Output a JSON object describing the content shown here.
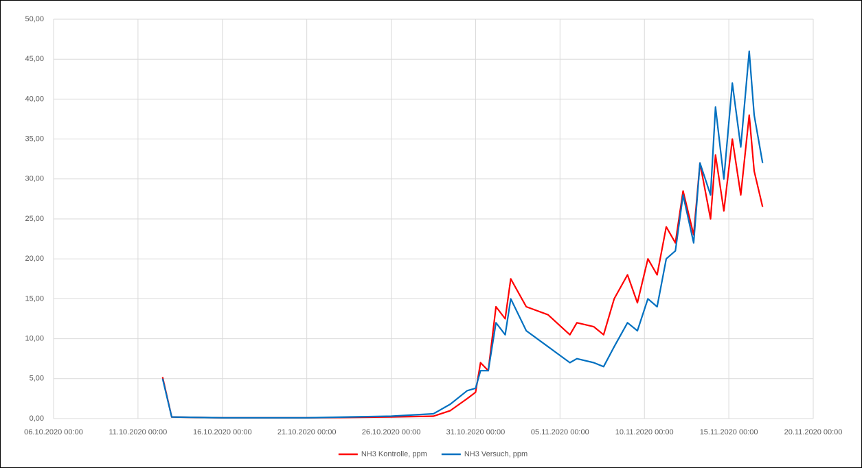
{
  "chart_data": {
    "type": "line",
    "x": [
      "12.10.2020 11:00",
      "13.10.2020 00:00",
      "16.10.2020 00:00",
      "21.10.2020 00:00",
      "26.10.2020 00:00",
      "28.10.2020 12:00",
      "29.10.2020 12:00",
      "30.10.2020 12:00",
      "31.10.2020 00:00",
      "31.10.2020 07:00",
      "31.10.2020 18:00",
      "01.11.2020 05:00",
      "01.11.2020 18:00",
      "02.11.2020 02:00",
      "03.11.2020 00:00",
      "04.11.2020 07:00",
      "05.11.2020 14:00",
      "06.11.2020 00:00",
      "07.11.2020 00:00",
      "07.11.2020 14:00",
      "08.11.2020 05:00",
      "09.11.2020 00:00",
      "09.11.2020 14:00",
      "10.11.2020 05:00",
      "10.11.2020 18:00",
      "11.11.2020 07:00",
      "11.11.2020 20:00",
      "12.11.2020 07:00",
      "12.11.2020 22:00",
      "13.11.2020 07:00",
      "13.11.2020 22:00",
      "14.11.2020 05:00",
      "14.11.2020 17:00",
      "15.11.2020 05:00",
      "15.11.2020 17:00",
      "16.11.2020 05:00",
      "16.11.2020 12:00",
      "17.11.2020 00:00"
    ],
    "series": [
      {
        "name": "NH3 Kontrolle, ppm",
        "color": "#ff0000",
        "values": [
          5.2,
          0.2,
          0.1,
          0.1,
          0.2,
          0.3,
          1.0,
          2.5,
          3.3,
          7.0,
          6.0,
          14.0,
          12.5,
          17.5,
          14.0,
          13.0,
          10.5,
          12.0,
          11.5,
          10.5,
          15.0,
          18.0,
          14.5,
          20.0,
          18.0,
          24.0,
          22.0,
          28.5,
          23.0,
          32.0,
          25.0,
          33.0,
          26.0,
          35.0,
          28.0,
          38.0,
          31.0,
          26.5
        ]
      },
      {
        "name": "NH3 Versuch, ppm",
        "color": "#0070c0",
        "values": [
          5.0,
          0.2,
          0.1,
          0.1,
          0.3,
          0.6,
          1.8,
          3.5,
          3.8,
          6.0,
          6.0,
          12.0,
          10.5,
          15.0,
          11.0,
          9.0,
          7.0,
          7.5,
          7.0,
          6.5,
          9.0,
          12.0,
          11.0,
          15.0,
          14.0,
          20.0,
          21.0,
          28.0,
          22.0,
          32.0,
          28.0,
          39.0,
          30.0,
          42.0,
          34.0,
          46.0,
          38.0,
          32.0
        ]
      }
    ],
    "xlim": [
      "06.10.2020 00:00",
      "20.11.2020 00:00"
    ],
    "xticks": [
      "06.10.2020 00:00",
      "11.10.2020 00:00",
      "16.10.2020 00:00",
      "21.10.2020 00:00",
      "26.10.2020 00:00",
      "31.10.2020 00:00",
      "05.11.2020 00:00",
      "10.11.2020 00:00",
      "15.11.2020 00:00",
      "20.11.2020 00:00"
    ],
    "ylim": [
      0,
      50
    ],
    "yticks": [
      {
        "value": 0,
        "label": "0,00"
      },
      {
        "value": 5,
        "label": "5,00"
      },
      {
        "value": 10,
        "label": "10,00"
      },
      {
        "value": 15,
        "label": "15,00"
      },
      {
        "value": 20,
        "label": "20,00"
      },
      {
        "value": 25,
        "label": "25,00"
      },
      {
        "value": 30,
        "label": "30,00"
      },
      {
        "value": 35,
        "label": "35,00"
      },
      {
        "value": 40,
        "label": "40,00"
      },
      {
        "value": 45,
        "label": "45,00"
      },
      {
        "value": 50,
        "label": "50,00"
      }
    ],
    "grid": true,
    "legend": "bottom"
  }
}
